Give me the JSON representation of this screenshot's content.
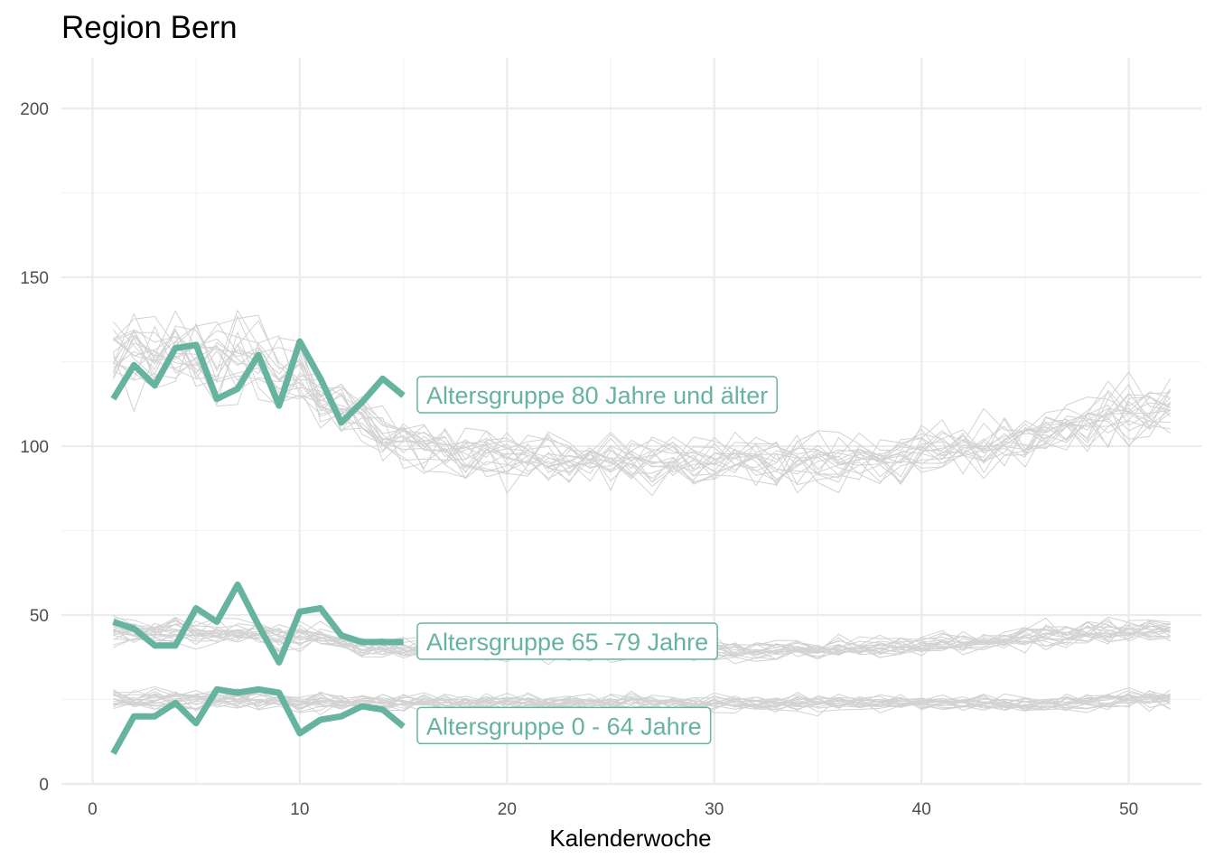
{
  "chart_data": {
    "type": "line",
    "title": "Region Bern",
    "xlabel": "Kalenderwoche",
    "ylabel": "",
    "xlim": [
      -1.5,
      53.5
    ],
    "ylim": [
      0,
      215
    ],
    "x_ticks": [
      0,
      10,
      20,
      30,
      40,
      50
    ],
    "y_ticks": [
      0,
      50,
      100,
      150,
      200
    ],
    "grid": true,
    "colors": {
      "highlight": "#66b3a0",
      "background_series": "#d2d2d2"
    },
    "highlight_series": [
      {
        "name": "Altersgruppe 80 Jahre und älter",
        "x": [
          1,
          2,
          3,
          4,
          5,
          6,
          7,
          8,
          9,
          10,
          11,
          12,
          13,
          14,
          15
        ],
        "values": [
          114,
          124,
          118,
          129,
          130,
          114,
          117,
          127,
          112,
          131,
          120,
          107,
          113,
          120,
          115
        ]
      },
      {
        "name": "Altersgruppe 65 -79 Jahre",
        "x": [
          1,
          2,
          3,
          4,
          5,
          6,
          7,
          8,
          9,
          10,
          11,
          12,
          13,
          14,
          15
        ],
        "values": [
          48,
          46,
          41,
          41,
          52,
          48,
          59,
          47,
          36,
          51,
          52,
          44,
          42,
          42,
          42
        ]
      },
      {
        "name": "Altersgruppe 0 - 64 Jahre",
        "x": [
          1,
          2,
          3,
          4,
          5,
          6,
          7,
          8,
          9,
          10,
          11,
          12,
          13,
          14,
          15
        ],
        "values": [
          9,
          20,
          20,
          24,
          18,
          28,
          27,
          28,
          27,
          15,
          19,
          20,
          23,
          22,
          17
        ]
      }
    ],
    "background_bands": [
      {
        "group": "80+",
        "x": [
          1,
          2,
          3,
          4,
          5,
          6,
          7,
          8,
          9,
          10,
          11,
          12,
          13,
          14,
          15,
          16,
          17,
          18,
          19,
          20,
          21,
          22,
          23,
          24,
          25,
          26,
          27,
          28,
          29,
          30,
          31,
          32,
          33,
          34,
          35,
          36,
          37,
          38,
          39,
          40,
          41,
          42,
          43,
          44,
          45,
          46,
          47,
          48,
          49,
          50,
          51,
          52
        ],
        "mean": [
          128,
          129,
          127,
          127,
          126,
          125,
          126,
          125,
          122,
          120,
          115,
          112,
          108,
          104,
          102,
          100,
          99,
          98,
          98,
          97,
          97,
          97,
          96,
          96,
          96,
          96,
          96,
          96,
          95,
          95,
          95,
          95,
          95,
          95,
          96,
          96,
          96,
          96,
          97,
          98,
          99,
          100,
          100,
          101,
          102,
          104,
          106,
          108,
          110,
          111,
          112,
          113
        ],
        "spread": [
          18,
          20,
          20,
          18,
          18,
          18,
          20,
          18,
          18,
          18,
          16,
          14,
          13,
          13,
          13,
          12,
          12,
          12,
          12,
          12,
          12,
          12,
          12,
          12,
          12,
          12,
          12,
          12,
          12,
          12,
          12,
          12,
          12,
          12,
          12,
          12,
          12,
          12,
          12,
          12,
          12,
          12,
          12,
          12,
          12,
          12,
          13,
          13,
          14,
          14,
          14,
          14
        ]
      },
      {
        "group": "65-79",
        "x": [
          1,
          2,
          3,
          4,
          5,
          6,
          7,
          8,
          9,
          10,
          11,
          12,
          13,
          14,
          15,
          16,
          17,
          18,
          19,
          20,
          21,
          22,
          23,
          24,
          25,
          26,
          27,
          28,
          29,
          30,
          31,
          32,
          33,
          34,
          35,
          36,
          37,
          38,
          39,
          40,
          41,
          42,
          43,
          44,
          45,
          46,
          47,
          48,
          49,
          50,
          51,
          52
        ],
        "mean": [
          45,
          45,
          45,
          45,
          45,
          45,
          45,
          45,
          44,
          44,
          43,
          42,
          41,
          41,
          40,
          40,
          40,
          40,
          40,
          40,
          40,
          40,
          40,
          40,
          40,
          40,
          40,
          40,
          40,
          40,
          40,
          40,
          40,
          40,
          40,
          40,
          40,
          41,
          41,
          41,
          42,
          42,
          42,
          43,
          43,
          44,
          44,
          45,
          45,
          45,
          46,
          46
        ],
        "spread": [
          6,
          6,
          6,
          6,
          6,
          6,
          6,
          6,
          6,
          6,
          6,
          5,
          5,
          5,
          5,
          5,
          5,
          5,
          5,
          5,
          5,
          5,
          5,
          5,
          5,
          5,
          5,
          5,
          5,
          5,
          5,
          5,
          5,
          5,
          5,
          5,
          5,
          5,
          5,
          5,
          5,
          5,
          5,
          5,
          6,
          6,
          6,
          6,
          6,
          6,
          6,
          6
        ]
      },
      {
        "group": "0-64",
        "x": [
          1,
          2,
          3,
          4,
          5,
          6,
          7,
          8,
          9,
          10,
          11,
          12,
          13,
          14,
          15,
          16,
          17,
          18,
          19,
          20,
          21,
          22,
          23,
          24,
          25,
          26,
          27,
          28,
          29,
          30,
          31,
          32,
          33,
          34,
          35,
          36,
          37,
          38,
          39,
          40,
          41,
          42,
          43,
          44,
          45,
          46,
          47,
          48,
          49,
          50,
          51,
          52
        ],
        "mean": [
          25,
          25,
          25,
          25,
          25,
          25,
          25,
          25,
          25,
          24,
          24,
          24,
          24,
          24,
          24,
          24,
          24,
          24,
          24,
          24,
          24,
          24,
          24,
          24,
          24,
          24,
          24,
          24,
          24,
          24,
          24,
          24,
          24,
          24,
          24,
          24,
          24,
          24,
          24,
          24,
          24,
          24,
          24,
          24,
          24,
          24,
          24,
          24,
          25,
          25,
          25,
          25
        ],
        "spread": [
          5,
          5,
          5,
          5,
          5,
          5,
          5,
          5,
          5,
          5,
          5,
          4,
          4,
          4,
          4,
          4,
          4,
          4,
          4,
          4,
          4,
          4,
          4,
          4,
          4,
          4,
          4,
          4,
          4,
          4,
          4,
          4,
          4,
          4,
          4,
          4,
          4,
          4,
          4,
          4,
          4,
          4,
          4,
          4,
          4,
          4,
          4,
          4,
          5,
          5,
          5,
          5
        ]
      }
    ],
    "background_series_per_group": 20
  }
}
